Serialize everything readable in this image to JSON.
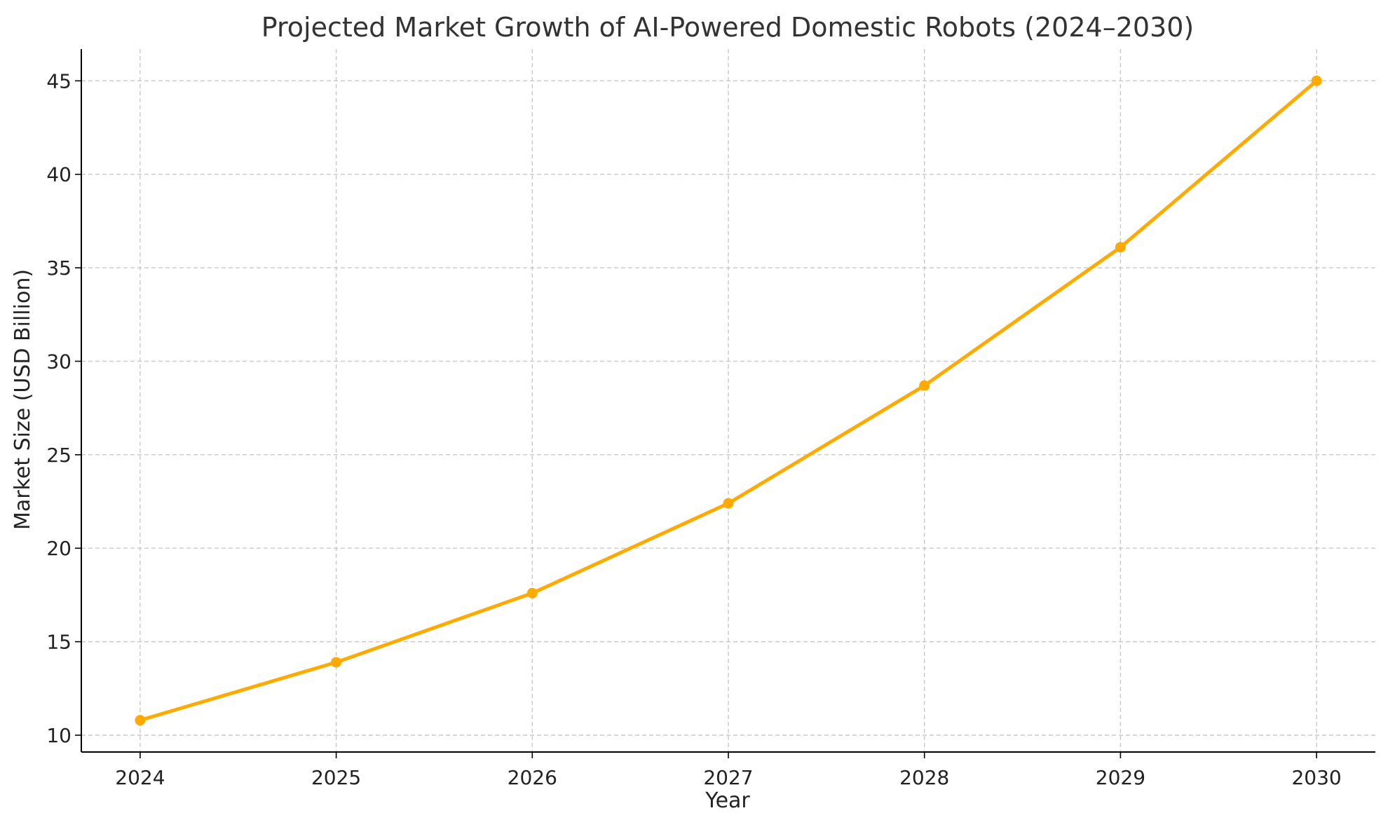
{
  "chart_data": {
    "type": "line",
    "title": "Projected Market Growth of AI-Powered Domestic Robots (2024–2030)",
    "xlabel": "Year",
    "ylabel": "Market Size (USD Billion)",
    "x": [
      "2024",
      "2025",
      "2026",
      "2027",
      "2028",
      "2029",
      "2030"
    ],
    "series": [
      {
        "values": [
          10.8,
          13.9,
          17.6,
          22.4,
          28.7,
          36.1,
          45.0
        ],
        "color": "#FFAA00"
      }
    ],
    "yticks": [
      10,
      15,
      20,
      25,
      30,
      35,
      40,
      45
    ],
    "ytick_labels": [
      "10",
      "15",
      "20",
      "25",
      "30",
      "35",
      "40",
      "45"
    ],
    "xlim": [
      2023.7,
      2030.3
    ],
    "ylim": [
      9.1,
      46.7
    ],
    "grid": true,
    "legend": "none",
    "marker": "circle"
  }
}
